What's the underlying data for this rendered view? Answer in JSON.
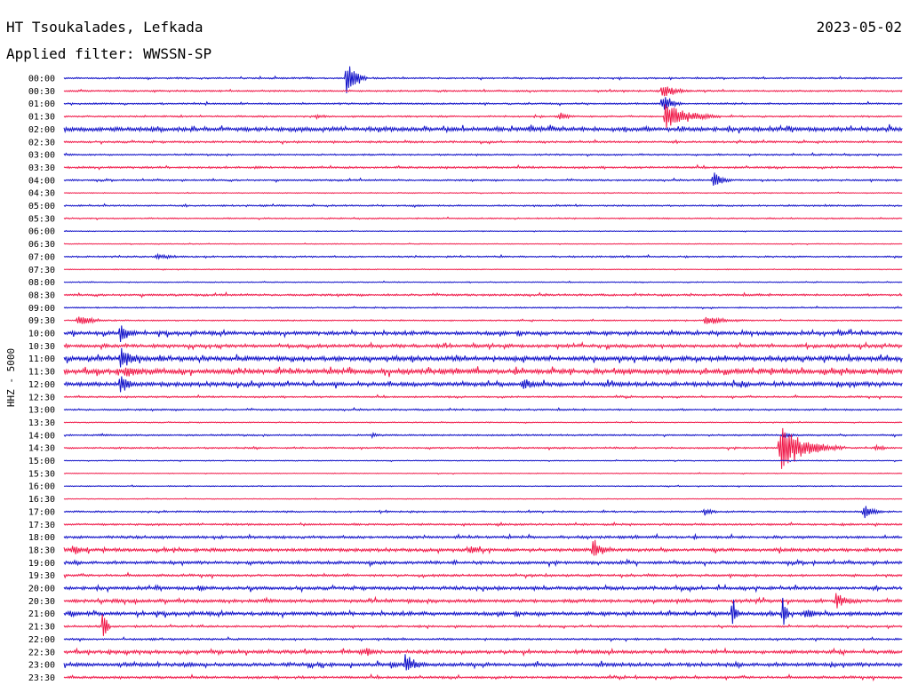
{
  "header": {
    "station": "HT Tsoukalades, Lefkada",
    "date": "2023-05-02",
    "filter": "Applied filter: WWSSN-SP"
  },
  "axis": {
    "ylabel": "HHZ - 5000"
  },
  "colors": {
    "even_trace": "#1010c8",
    "odd_trace": "#f01848",
    "text": "#000000"
  },
  "chart_data": {
    "type": "line",
    "title": "HT Tsoukalades, Lefkada",
    "subtitle": "Applied filter: WWSSN-SP",
    "date": "2023-05-02",
    "ylabel": "HHZ - 5000",
    "xlabel": "",
    "grid": false,
    "legend": "none",
    "row_labels": [
      "00:00",
      "00:30",
      "01:00",
      "01:30",
      "02:00",
      "02:30",
      "03:00",
      "03:30",
      "04:00",
      "04:30",
      "05:00",
      "05:30",
      "06:00",
      "06:30",
      "07:00",
      "07:30",
      "08:00",
      "08:30",
      "09:00",
      "09:30",
      "10:00",
      "10:30",
      "11:00",
      "11:30",
      "12:00",
      "12:30",
      "13:00",
      "13:30",
      "14:00",
      "14:30",
      "15:00",
      "15:30",
      "16:00",
      "16:30",
      "17:00",
      "17:30",
      "18:00",
      "18:30",
      "19:00",
      "19:30",
      "20:00",
      "20:30",
      "21:00",
      "21:30",
      "22:00",
      "22:30",
      "23:00",
      "23:30"
    ],
    "noise_level": [
      1.0,
      1.0,
      1.0,
      1.0,
      2.6,
      1.2,
      1.0,
      1.2,
      1.0,
      0.6,
      1.0,
      0.8,
      0.5,
      0.5,
      1.0,
      0.6,
      0.6,
      1.2,
      0.8,
      0.8,
      2.2,
      2.0,
      2.8,
      3.0,
      2.6,
      1.0,
      1.0,
      0.6,
      1.0,
      1.0,
      0.6,
      0.5,
      0.6,
      0.5,
      1.0,
      1.2,
      1.6,
      2.0,
      1.8,
      1.4,
      2.0,
      2.0,
      2.2,
      1.2,
      1.2,
      2.0,
      2.2,
      1.4
    ],
    "events": [
      {
        "row": 0,
        "minute": 10.1,
        "amplitude": 30,
        "duration": 0.3
      },
      {
        "row": 1,
        "minute": 21.4,
        "amplitude": 12,
        "duration": 0.4
      },
      {
        "row": 2,
        "minute": 21.4,
        "amplitude": 14,
        "duration": 0.3
      },
      {
        "row": 3,
        "minute": 21.5,
        "amplitude": 18,
        "duration": 0.8
      },
      {
        "row": 3,
        "minute": 17.7,
        "amplitude": 6,
        "duration": 0.3
      },
      {
        "row": 4,
        "minute": 16.6,
        "amplitude": 5,
        "duration": 0.4
      },
      {
        "row": 3,
        "minute": 9.0,
        "amplitude": 4,
        "duration": 0.3
      },
      {
        "row": 7,
        "minute": 6.8,
        "amplitude": 3,
        "duration": 0.3
      },
      {
        "row": 8,
        "minute": 23.2,
        "amplitude": 12,
        "duration": 0.3
      },
      {
        "row": 14,
        "minute": 3.3,
        "amplitude": 4,
        "duration": 0.6
      },
      {
        "row": 19,
        "minute": 0.5,
        "amplitude": 10,
        "duration": 0.4
      },
      {
        "row": 19,
        "minute": 22.9,
        "amplitude": 6,
        "duration": 0.8
      },
      {
        "row": 20,
        "minute": 2.0,
        "amplitude": 15,
        "duration": 0.3
      },
      {
        "row": 22,
        "minute": 2.0,
        "amplitude": 18,
        "duration": 0.4
      },
      {
        "row": 23,
        "minute": 2.2,
        "amplitude": 10,
        "duration": 0.5
      },
      {
        "row": 24,
        "minute": 16.4,
        "amplitude": 12,
        "duration": 0.3
      },
      {
        "row": 24,
        "minute": 2.0,
        "amplitude": 16,
        "duration": 0.3
      },
      {
        "row": 28,
        "minute": 11.0,
        "amplitude": 4,
        "duration": 0.2
      },
      {
        "row": 28,
        "minute": 25.7,
        "amplitude": 5,
        "duration": 0.3
      },
      {
        "row": 29,
        "minute": 25.6,
        "amplitude": 28,
        "duration": 0.9
      },
      {
        "row": 29,
        "minute": 29.0,
        "amplitude": 5,
        "duration": 0.3
      },
      {
        "row": 34,
        "minute": 22.9,
        "amplitude": 6,
        "duration": 0.3
      },
      {
        "row": 34,
        "minute": 28.6,
        "amplitude": 12,
        "duration": 0.3
      },
      {
        "row": 37,
        "minute": 0.3,
        "amplitude": 8,
        "duration": 0.3
      },
      {
        "row": 37,
        "minute": 14.5,
        "amplitude": 8,
        "duration": 0.3
      },
      {
        "row": 37,
        "minute": 18.9,
        "amplitude": 16,
        "duration": 0.3
      },
      {
        "row": 40,
        "minute": 4.8,
        "amplitude": 5,
        "duration": 0.3
      },
      {
        "row": 41,
        "minute": 27.6,
        "amplitude": 12,
        "duration": 0.4
      },
      {
        "row": 42,
        "minute": 0.2,
        "amplitude": 6,
        "duration": 0.3
      },
      {
        "row": 42,
        "minute": 23.9,
        "amplitude": 30,
        "duration": 0.1
      },
      {
        "row": 42,
        "minute": 25.7,
        "amplitude": 30,
        "duration": 0.1
      },
      {
        "row": 42,
        "minute": 26.5,
        "amplitude": 10,
        "duration": 0.3
      },
      {
        "row": 43,
        "minute": 1.4,
        "amplitude": 28,
        "duration": 0.1
      },
      {
        "row": 45,
        "minute": 10.8,
        "amplitude": 8,
        "duration": 0.3
      },
      {
        "row": 46,
        "minute": 12.2,
        "amplitude": 14,
        "duration": 0.4
      },
      {
        "row": 46,
        "minute": 11.7,
        "amplitude": 6,
        "duration": 0.3
      }
    ]
  }
}
